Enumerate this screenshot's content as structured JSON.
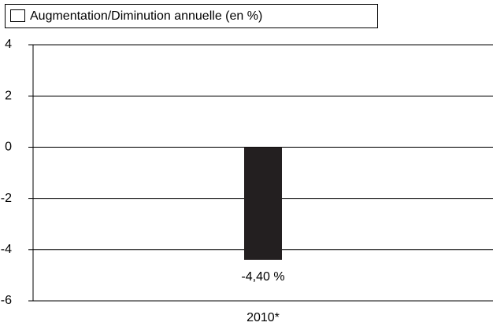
{
  "chart_data": {
    "type": "bar",
    "categories": [
      "2010*"
    ],
    "series": [
      {
        "name": "Augmentation/Diminution annuelle (en %)",
        "color": "#231f20",
        "values": [
          -4.4
        ],
        "value_labels": [
          "-4,40 %"
        ]
      }
    ],
    "ylim": [
      -6,
      4
    ],
    "yticks": [
      -6,
      -4,
      -2,
      0,
      2,
      4
    ],
    "grid": true
  }
}
